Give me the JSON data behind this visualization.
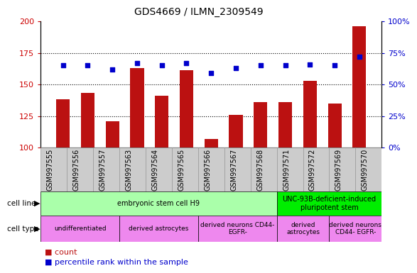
{
  "title": "GDS4669 / ILMN_2309549",
  "samples": [
    "GSM997555",
    "GSM997556",
    "GSM997557",
    "GSM997563",
    "GSM997564",
    "GSM997565",
    "GSM997566",
    "GSM997567",
    "GSM997568",
    "GSM997571",
    "GSM997572",
    "GSM997569",
    "GSM997570"
  ],
  "counts": [
    138,
    143,
    121,
    163,
    141,
    161,
    107,
    126,
    136,
    136,
    153,
    135,
    196
  ],
  "percentile_ranks": [
    65,
    65,
    62,
    67,
    65,
    67,
    59,
    63,
    65,
    65,
    66,
    65,
    72
  ],
  "ylim_left": [
    100,
    200
  ],
  "ylim_right": [
    0,
    100
  ],
  "yticks_left": [
    100,
    125,
    150,
    175,
    200
  ],
  "yticks_right": [
    0,
    25,
    50,
    75,
    100
  ],
  "bar_color": "#bb1111",
  "scatter_color": "#0000cc",
  "bg_color": "#ffffff",
  "cell_line_groups": [
    {
      "label": "embryonic stem cell H9",
      "start": 0,
      "end": 9,
      "color": "#aaffaa"
    },
    {
      "label": "UNC-93B-deficient-induced\npluripotent stem",
      "start": 9,
      "end": 13,
      "color": "#00ee00"
    }
  ],
  "cell_type_groups": [
    {
      "label": "undifferentiated",
      "start": 0,
      "end": 3,
      "color": "#ee88ee"
    },
    {
      "label": "derived astrocytes",
      "start": 3,
      "end": 6,
      "color": "#ee88ee"
    },
    {
      "label": "derived neurons CD44-\nEGFR-",
      "start": 6,
      "end": 9,
      "color": "#ee88ee"
    },
    {
      "label": "derived\nastrocytes",
      "start": 9,
      "end": 11,
      "color": "#ee88ee"
    },
    {
      "label": "derived neurons\nCD44- EGFR-",
      "start": 11,
      "end": 13,
      "color": "#ee88ee"
    }
  ],
  "left_axis_color": "#cc0000",
  "right_axis_color": "#0000cc",
  "xtick_bg_color": "#cccccc",
  "xtick_border_color": "#999999"
}
